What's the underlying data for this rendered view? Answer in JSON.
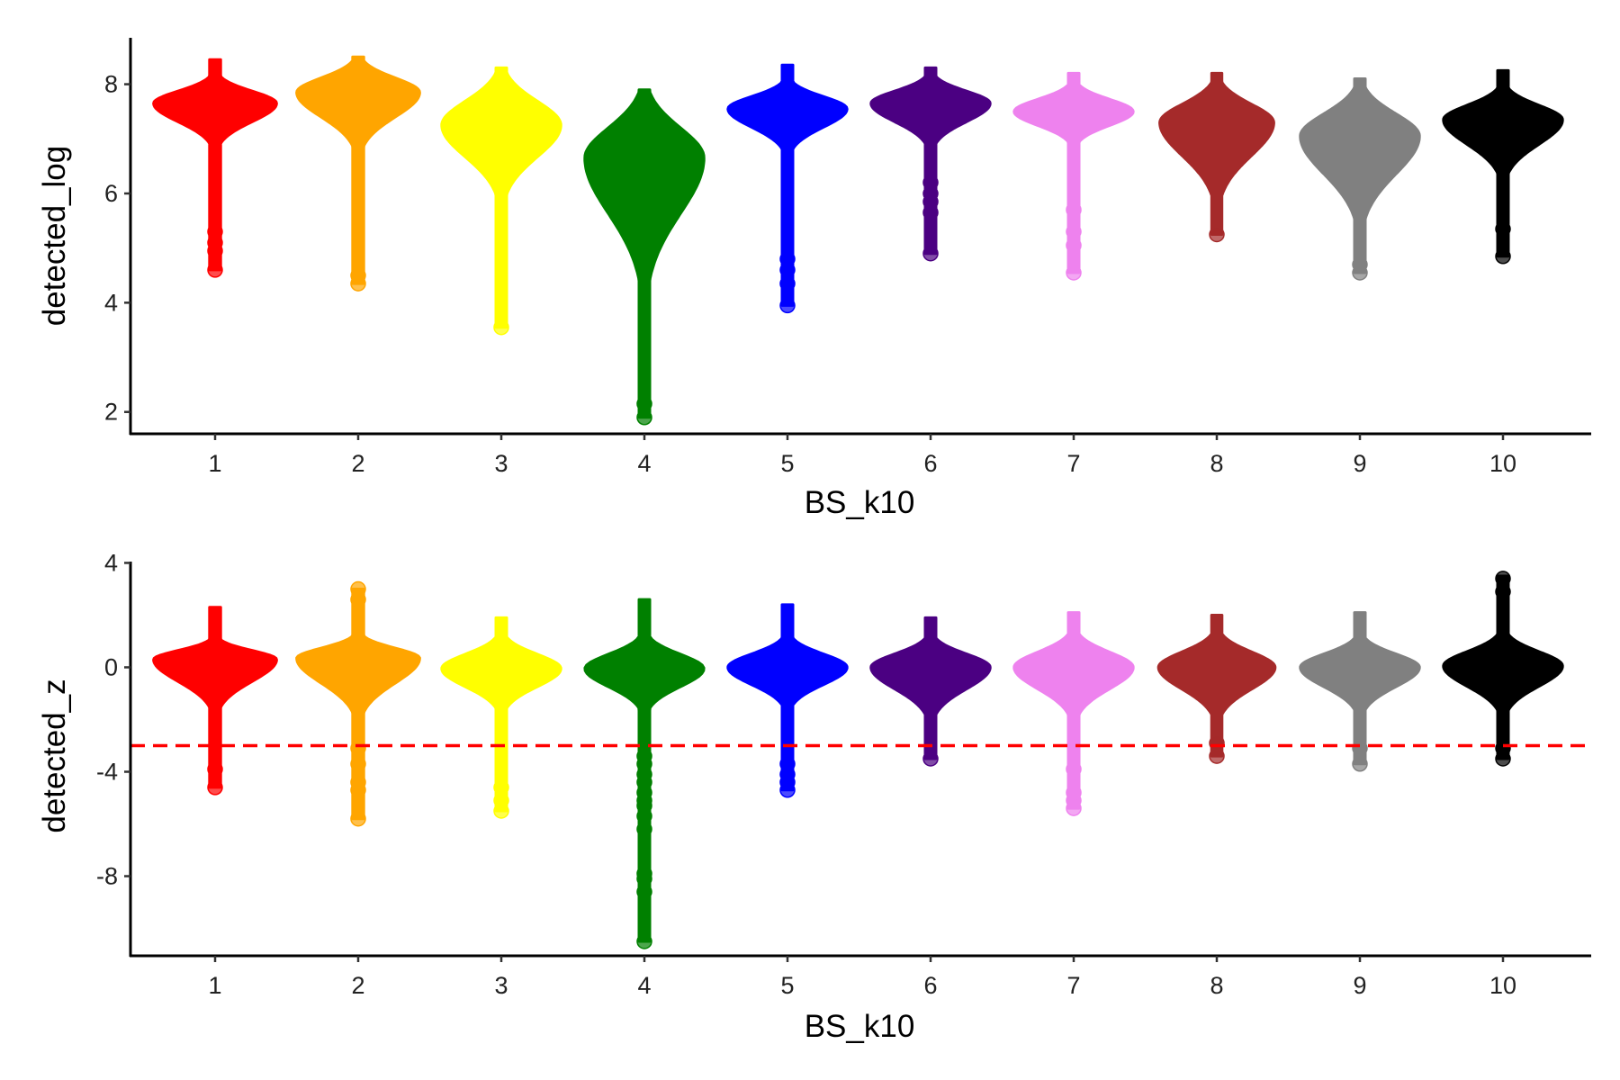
{
  "chart_data": [
    {
      "type": "violin",
      "xlabel": "BS_k10",
      "ylabel": "detected_log",
      "ylim": [
        1.6,
        8.85
      ],
      "yticks": [
        2,
        4,
        6,
        8
      ],
      "categories": [
        "1",
        "2",
        "3",
        "4",
        "5",
        "6",
        "7",
        "8",
        "9",
        "10"
      ],
      "colors": [
        "#FF0000",
        "#FFA500",
        "#FFFF00",
        "#008000",
        "#0000FF",
        "#4B0082",
        "#EE82EE",
        "#A52A2A",
        "#808080",
        "#000000"
      ],
      "grid": false,
      "series": [
        {
          "category": "1",
          "min": 4.6,
          "q1": 7.45,
          "median": 7.65,
          "q3": 7.8,
          "max": 8.45,
          "mode": 7.65,
          "width": 0.95,
          "outliers": [
            4.6,
            4.95,
            5.1,
            5.3
          ]
        },
        {
          "category": "2",
          "min": 4.35,
          "q1": 7.55,
          "median": 7.8,
          "q3": 8.0,
          "max": 8.5,
          "mode": 7.85,
          "width": 0.95,
          "outliers": [
            4.35,
            4.5
          ]
        },
        {
          "category": "3",
          "min": 3.55,
          "q1": 6.9,
          "median": 7.25,
          "q3": 7.55,
          "max": 8.3,
          "mode": 7.25,
          "width": 0.92,
          "outliers": [
            3.55
          ]
        },
        {
          "category": "4",
          "min": 1.9,
          "q1": 6.0,
          "median": 6.6,
          "q3": 7.0,
          "max": 7.9,
          "mode": 6.65,
          "width": 0.92,
          "outliers": [
            1.9,
            2.15
          ]
        },
        {
          "category": "5",
          "min": 3.95,
          "q1": 7.35,
          "median": 7.55,
          "q3": 7.7,
          "max": 8.35,
          "mode": 7.55,
          "width": 0.92,
          "outliers": [
            3.95,
            4.35,
            4.6,
            4.8
          ]
        },
        {
          "category": "6",
          "min": 4.9,
          "q1": 7.45,
          "median": 7.65,
          "q3": 7.8,
          "max": 8.3,
          "mode": 7.65,
          "width": 0.92,
          "outliers": [
            4.9,
            5.65,
            5.85,
            6.0,
            6.2
          ]
        },
        {
          "category": "7",
          "min": 4.55,
          "q1": 7.35,
          "median": 7.5,
          "q3": 7.65,
          "max": 8.2,
          "mode": 7.5,
          "width": 0.92,
          "outliers": [
            4.55,
            5.05,
            5.3,
            5.7
          ]
        },
        {
          "category": "8",
          "min": 5.25,
          "q1": 6.9,
          "median": 7.25,
          "q3": 7.5,
          "max": 8.2,
          "mode": 7.3,
          "width": 0.88,
          "outliers": [
            5.25
          ]
        },
        {
          "category": "9",
          "min": 4.55,
          "q1": 6.6,
          "median": 7.0,
          "q3": 7.3,
          "max": 8.1,
          "mode": 7.05,
          "width": 0.92,
          "outliers": [
            4.55,
            4.7
          ]
        },
        {
          "category": "10",
          "min": 4.85,
          "q1": 7.05,
          "median": 7.3,
          "q3": 7.5,
          "max": 8.25,
          "mode": 7.35,
          "width": 0.92,
          "outliers": [
            4.85,
            5.35
          ]
        }
      ]
    },
    {
      "type": "violin",
      "xlabel": "BS_k10",
      "ylabel": "detected_z",
      "ylim": [
        -11.05,
        4.05
      ],
      "yticks": [
        4,
        0,
        -4,
        -8
      ],
      "categories": [
        "1",
        "2",
        "3",
        "4",
        "5",
        "6",
        "7",
        "8",
        "9",
        "10"
      ],
      "colors": [
        "#FF0000",
        "#FFA500",
        "#FFFF00",
        "#008000",
        "#0000FF",
        "#4B0082",
        "#EE82EE",
        "#A52A2A",
        "#808080",
        "#000000"
      ],
      "grid": false,
      "threshold": {
        "y": -3,
        "color": "#FF0000",
        "style": "dashed"
      },
      "series": [
        {
          "category": "1",
          "min": -4.6,
          "q1": -0.3,
          "median": 0.15,
          "q3": 0.45,
          "max": 2.3,
          "mode": 0.3,
          "width": 0.95,
          "outliers": [
            -4.6,
            -3.9
          ]
        },
        {
          "category": "2",
          "min": -5.8,
          "q1": -0.35,
          "median": 0.15,
          "q3": 0.5,
          "max": 3.0,
          "mode": 0.35,
          "width": 0.95,
          "outliers": [
            -5.8,
            -4.7,
            -4.4,
            -3.7,
            -3.1,
            2.6,
            3.0
          ]
        },
        {
          "category": "3",
          "min": -5.5,
          "q1": -0.5,
          "median": -0.1,
          "q3": 0.3,
          "max": 1.9,
          "mode": -0.05,
          "width": 0.92,
          "outliers": [
            -5.5,
            -5.1,
            -4.6
          ]
        },
        {
          "category": "4",
          "min": -10.5,
          "q1": -0.5,
          "median": -0.1,
          "q3": 0.3,
          "max": 2.6,
          "mode": -0.05,
          "width": 0.92,
          "outliers": [
            -10.5,
            -8.6,
            -8.1,
            -7.9,
            -6.2,
            -5.7,
            -5.3,
            -5.1,
            -4.8,
            -4.4,
            -4.1,
            -3.7,
            -3.4
          ]
        },
        {
          "category": "5",
          "min": -4.7,
          "q1": -0.4,
          "median": 0.0,
          "q3": 0.35,
          "max": 2.4,
          "mode": 0.0,
          "width": 0.92,
          "outliers": [
            -4.7,
            -4.4,
            -4.1,
            -3.7
          ]
        },
        {
          "category": "6",
          "min": -3.5,
          "q1": -0.5,
          "median": 0.0,
          "q3": 0.35,
          "max": 1.9,
          "mode": 0.0,
          "width": 0.92,
          "outliers": [
            -3.5
          ]
        },
        {
          "category": "7",
          "min": -5.4,
          "q1": -0.5,
          "median": 0.0,
          "q3": 0.4,
          "max": 2.1,
          "mode": 0.0,
          "width": 0.92,
          "outliers": [
            -5.4,
            -5.1,
            -4.8,
            -3.9
          ]
        },
        {
          "category": "8",
          "min": -3.4,
          "q1": -0.5,
          "median": 0.0,
          "q3": 0.4,
          "max": 2.0,
          "mode": 0.0,
          "width": 0.9,
          "outliers": [
            -3.4,
            -2.9
          ]
        },
        {
          "category": "9",
          "min": -3.7,
          "q1": -0.45,
          "median": 0.0,
          "q3": 0.35,
          "max": 2.1,
          "mode": 0.0,
          "width": 0.92,
          "outliers": [
            -3.7,
            -3.1
          ]
        },
        {
          "category": "10",
          "min": -3.5,
          "q1": -0.45,
          "median": 0.0,
          "q3": 0.4,
          "max": 3.5,
          "mode": 0.05,
          "width": 0.92,
          "outliers": [
            -3.5,
            -3.1,
            2.9,
            3.4
          ]
        }
      ]
    }
  ]
}
